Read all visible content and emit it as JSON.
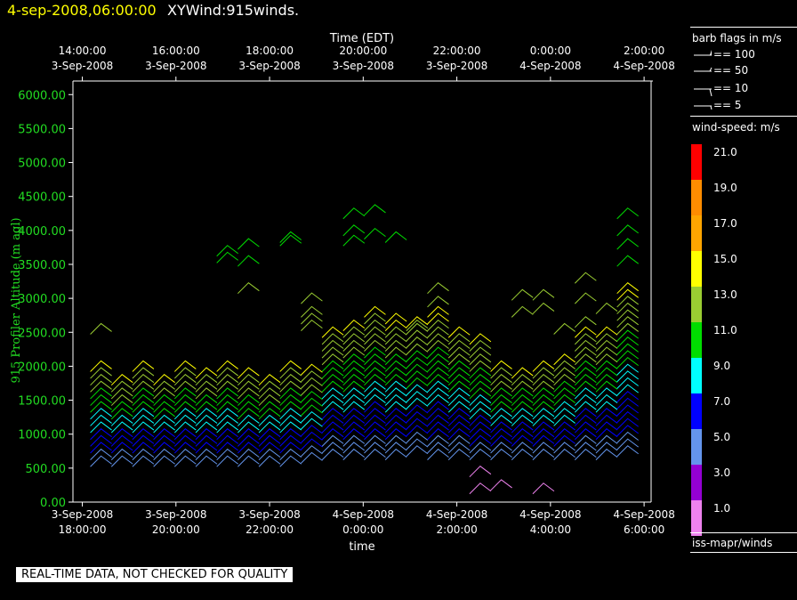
{
  "header": {
    "datetime": "4-sep-2008,06:00:00",
    "product": "XYWind:915winds."
  },
  "chart_data": {
    "type": "wind-barb",
    "title": "XYWind:915winds.",
    "ylabel": "915 Profiler Altitude (m agl)",
    "xlabel": "time",
    "top_axis_label": "Time (EDT)",
    "ylim": [
      0,
      6200
    ],
    "y_ticks": [
      "0.00",
      "500.00",
      "1000.00",
      "1500.00",
      "2000.00",
      "2500.00",
      "3000.00",
      "3500.00",
      "4000.00",
      "4500.00",
      "5000.00",
      "5500.00",
      "6000.00"
    ],
    "y_tick_values": [
      0,
      500,
      1000,
      1500,
      2000,
      2500,
      3000,
      3500,
      4000,
      4500,
      5000,
      5500,
      6000
    ],
    "x_range_hours_utc": [
      17.8,
      30.15
    ],
    "bottom_ticks": [
      {
        "hour": 18,
        "date": "3-Sep-2008",
        "time": "18:00:00"
      },
      {
        "hour": 20,
        "date": "3-Sep-2008",
        "time": "20:00:00"
      },
      {
        "hour": 22,
        "date": "3-Sep-2008",
        "time": "22:00:00"
      },
      {
        "hour": 24,
        "date": "4-Sep-2008",
        "time": "0:00:00"
      },
      {
        "hour": 26,
        "date": "4-Sep-2008",
        "time": "2:00:00"
      },
      {
        "hour": 28,
        "date": "4-Sep-2008",
        "time": "4:00:00"
      },
      {
        "hour": 30,
        "date": "4-Sep-2008",
        "time": "6:00:00"
      }
    ],
    "top_ticks": [
      {
        "hour": 18,
        "time": "14:00:00",
        "date": "3-Sep-2008"
      },
      {
        "hour": 20,
        "time": "16:00:00",
        "date": "3-Sep-2008"
      },
      {
        "hour": 22,
        "time": "18:00:00",
        "date": "3-Sep-2008"
      },
      {
        "hour": 24,
        "time": "20:00:00",
        "date": "3-Sep-2008"
      },
      {
        "hour": 26,
        "time": "22:00:00",
        "date": "3-Sep-2008"
      },
      {
        "hour": 28,
        "time": "0:00:00",
        "date": "4-Sep-2008"
      },
      {
        "hour": 30,
        "time": "2:00:00",
        "date": "4-Sep-2008"
      }
    ],
    "profiles": [
      {
        "t": 18.4,
        "bottom": 600,
        "top": 2050,
        "mid": 1300,
        "extra": [
          2550
        ]
      },
      {
        "t": 18.85,
        "bottom": 600,
        "top": 1800,
        "mid": 1200
      },
      {
        "t": 19.3,
        "bottom": 600,
        "top": 2000,
        "mid": 1200
      },
      {
        "t": 19.75,
        "bottom": 600,
        "top": 1850,
        "mid": 1250
      },
      {
        "t": 20.2,
        "bottom": 600,
        "top": 2000,
        "mid": 1300
      },
      {
        "t": 20.65,
        "bottom": 600,
        "top": 1950,
        "mid": 1300
      },
      {
        "t": 21.1,
        "bottom": 600,
        "top": 2050,
        "mid": 1300,
        "extra": [
          3600,
          3700
        ]
      },
      {
        "t": 21.55,
        "bottom": 600,
        "top": 1900,
        "mid": 1250,
        "extra": [
          3150,
          3550,
          3800
        ]
      },
      {
        "t": 22.0,
        "bottom": 600,
        "top": 1800,
        "mid": 1200
      },
      {
        "t": 22.45,
        "bottom": 600,
        "top": 2000,
        "mid": 1300,
        "extra": [
          3850,
          3900
        ]
      },
      {
        "t": 22.9,
        "bottom": 650,
        "top": 2000,
        "mid": 1300,
        "extra": [
          2600,
          2700,
          2800,
          3000
        ]
      },
      {
        "t": 23.35,
        "bottom": 700,
        "top": 2550,
        "mid": 1500
      },
      {
        "t": 23.8,
        "bottom": 700,
        "top": 2650,
        "mid": 1500,
        "extra": [
          3850,
          4000,
          4250
        ]
      },
      {
        "t": 24.25,
        "bottom": 700,
        "top": 2850,
        "mid": 1600,
        "extra": [
          3950,
          4300
        ]
      },
      {
        "t": 24.7,
        "bottom": 700,
        "top": 2700,
        "mid": 1600,
        "extra": [
          3900
        ]
      },
      {
        "t": 25.15,
        "bottom": 750,
        "top": 2700,
        "mid": 1600,
        "extra": [
          2600
        ]
      },
      {
        "t": 25.6,
        "bottom": 700,
        "top": 2800,
        "mid": 1600,
        "extra": [
          2950,
          3150
        ]
      },
      {
        "t": 26.05,
        "bottom": 700,
        "top": 2550,
        "mid": 1500
      },
      {
        "t": 26.5,
        "bottom": 700,
        "top": 2400,
        "mid": 1400,
        "extra": [
          200,
          450
        ]
      },
      {
        "t": 26.95,
        "bottom": 700,
        "top": 2000,
        "mid": 1300,
        "extra": [
          250
        ]
      },
      {
        "t": 27.4,
        "bottom": 700,
        "top": 1950,
        "mid": 1300,
        "extra": [
          2800,
          3050
        ]
      },
      {
        "t": 27.85,
        "bottom": 700,
        "top": 2050,
        "mid": 1300,
        "extra": [
          2850,
          3050,
          200
        ]
      },
      {
        "t": 28.3,
        "bottom": 700,
        "top": 2150,
        "mid": 1350,
        "extra": [
          2550
        ]
      },
      {
        "t": 28.75,
        "bottom": 700,
        "top": 2550,
        "mid": 1500,
        "extra": [
          2650,
          3000,
          3300
        ]
      },
      {
        "t": 29.2,
        "bottom": 700,
        "top": 2500,
        "mid": 1500,
        "extra": [
          2850
        ]
      },
      {
        "t": 29.65,
        "bottom": 750,
        "top": 3150,
        "mid": 1800,
        "extra": [
          3550,
          3800,
          4000,
          4250
        ]
      }
    ]
  },
  "legend": {
    "flags_title": "barb flags in m/s",
    "flags": [
      {
        "label": "== 100",
        "kind": "pennant"
      },
      {
        "label": "== 50",
        "kind": "pennant-small"
      },
      {
        "label": "== 10",
        "kind": "full"
      },
      {
        "label": "== 5",
        "kind": "half"
      }
    ],
    "speed_title": "wind-speed: m/s",
    "speed_scale": [
      {
        "label": "21.0",
        "color": "#ff0000"
      },
      {
        "label": "19.0",
        "color": "#ff8c00"
      },
      {
        "label": "17.0",
        "color": "#ffa500"
      },
      {
        "label": "15.0",
        "color": "#ffff00"
      },
      {
        "label": "13.0",
        "color": "#9acd32"
      },
      {
        "label": "11.0",
        "color": "#00dd00"
      },
      {
        "label": "9.0",
        "color": "#00ffff"
      },
      {
        "label": "7.0",
        "color": "#0000ff"
      },
      {
        "label": "5.0",
        "color": "#6495ed"
      },
      {
        "label": "3.0",
        "color": "#9400d3"
      },
      {
        "label": "1.0",
        "color": "#ee82ee"
      }
    ],
    "footer": "iss-mapr/winds"
  },
  "disclaimer": "REAL-TIME DATA, NOT CHECKED FOR QUALITY",
  "colors": {
    "axis_labels": "#22dd22",
    "header_time": "#ffff00"
  }
}
